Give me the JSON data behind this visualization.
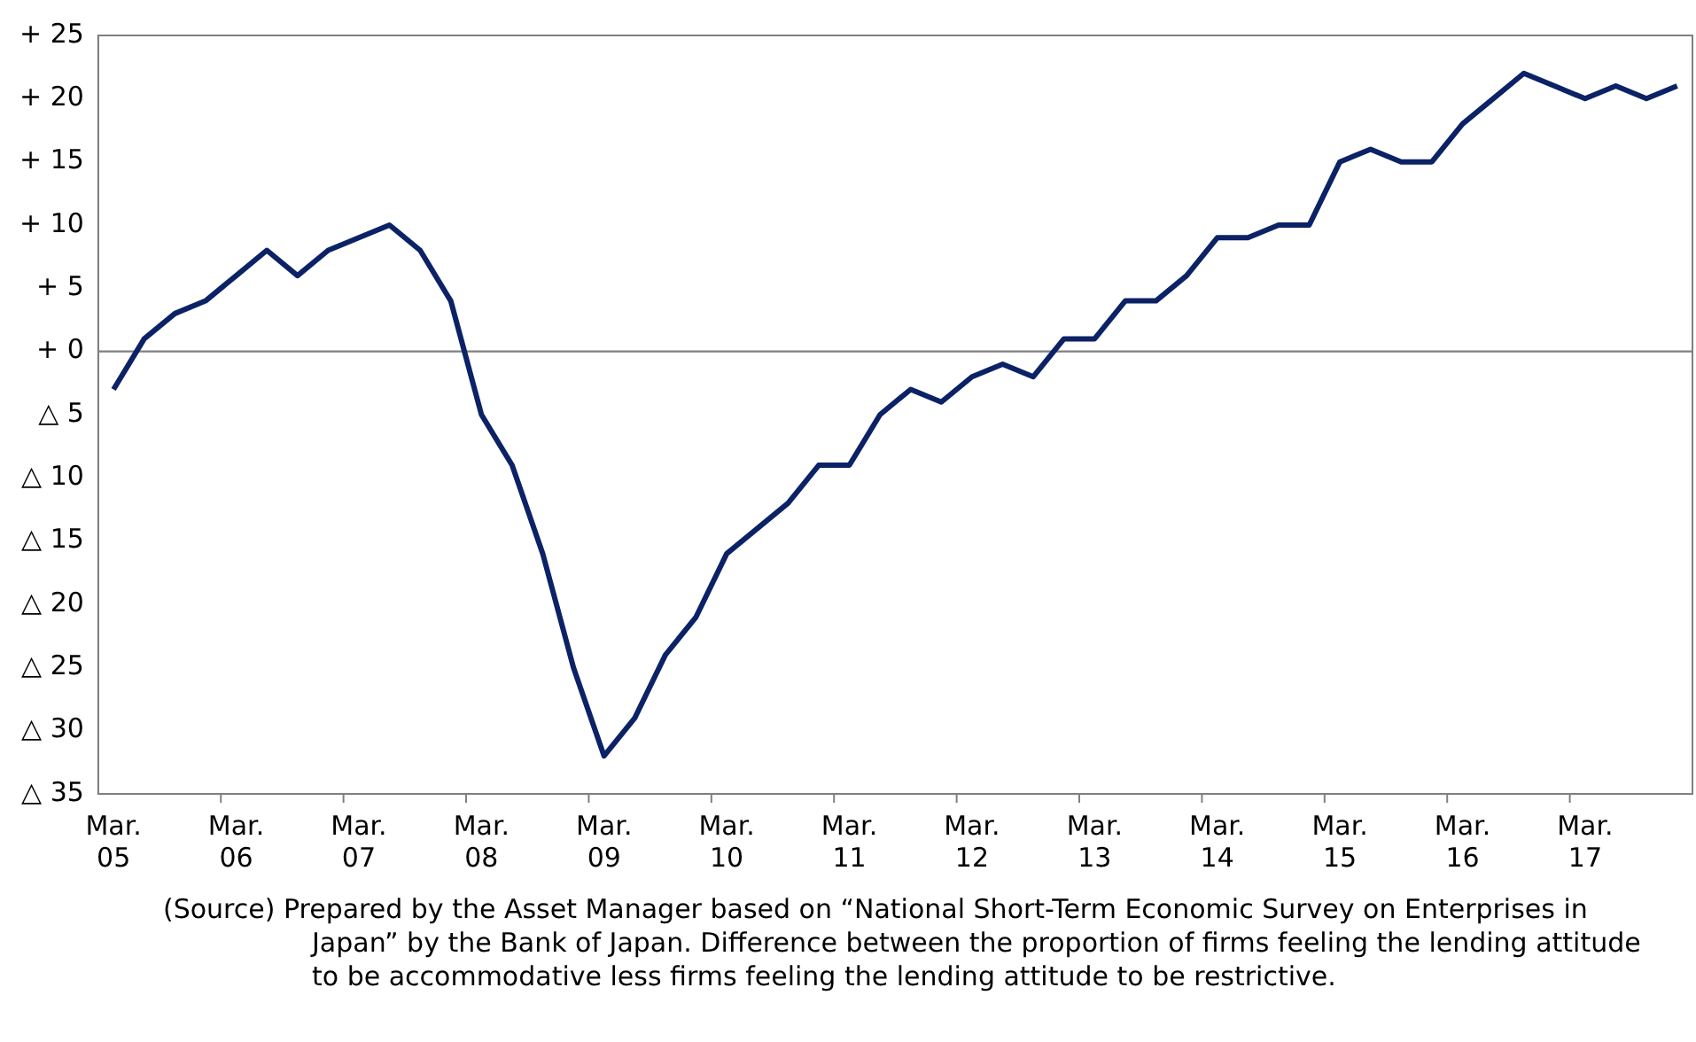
{
  "chart_data": {
    "type": "line",
    "categories": [
      "Mar. 05",
      null,
      null,
      null,
      "Mar. 06",
      null,
      null,
      null,
      "Mar. 07",
      null,
      null,
      null,
      "Mar. 08",
      null,
      null,
      null,
      "Mar. 09",
      null,
      null,
      null,
      "Mar. 10",
      null,
      null,
      null,
      "Mar. 11",
      null,
      null,
      null,
      "Mar. 12",
      null,
      null,
      null,
      "Mar. 13",
      null,
      null,
      null,
      "Mar. 14",
      null,
      null,
      null,
      "Mar. 15",
      null,
      null,
      null,
      "Mar. 16",
      null,
      null,
      null,
      "Mar. 17",
      null,
      null,
      null
    ],
    "series": [
      {
        "color": "#0c2266",
        "values": [
          -3,
          1,
          3,
          4,
          6,
          8,
          6,
          8,
          9,
          10,
          8,
          4,
          -5,
          -9,
          -16,
          -25,
          -32,
          -29,
          -24,
          -21,
          -16,
          -14,
          -12,
          -9,
          -9,
          -5,
          -3,
          -4,
          -2,
          -1,
          -2,
          1,
          1,
          4,
          4,
          6,
          9,
          9,
          10,
          10,
          15,
          16,
          15,
          15,
          18,
          20,
          22,
          21,
          20,
          21,
          20,
          21
        ]
      }
    ],
    "ylim": [
      -35,
      25
    ],
    "yticks": [
      {
        "value": 25,
        "label": "+ 25"
      },
      {
        "value": 20,
        "label": "+ 20"
      },
      {
        "value": 15,
        "label": "+ 15"
      },
      {
        "value": 10,
        "label": "+ 10"
      },
      {
        "value": 5,
        "label": "+ 5"
      },
      {
        "value": 0,
        "label": "+ 0"
      },
      {
        "value": -5,
        "label": "△ 5"
      },
      {
        "value": -10,
        "label": "△ 10"
      },
      {
        "value": -15,
        "label": "△ 15"
      },
      {
        "value": -20,
        "label": "△ 20"
      },
      {
        "value": -25,
        "label": "△ 25"
      },
      {
        "value": -30,
        "label": "△ 30"
      },
      {
        "value": -35,
        "label": "△ 35"
      }
    ],
    "ref_lines": [
      {
        "axis": "y",
        "value": 0,
        "color": "#808080"
      }
    ],
    "grid": false,
    "legend": false,
    "marker": "none",
    "line_style": "solid",
    "annotations": [
      "(Source) Prepared by the Asset Manager based on “National Short-Term Economic Survey on Enterprises in Japan” by the Bank of Japan. Difference between the proportion of firms feeling the lending attitude to be accommodative less firms feeling the lending attitude to be restrictive."
    ]
  }
}
